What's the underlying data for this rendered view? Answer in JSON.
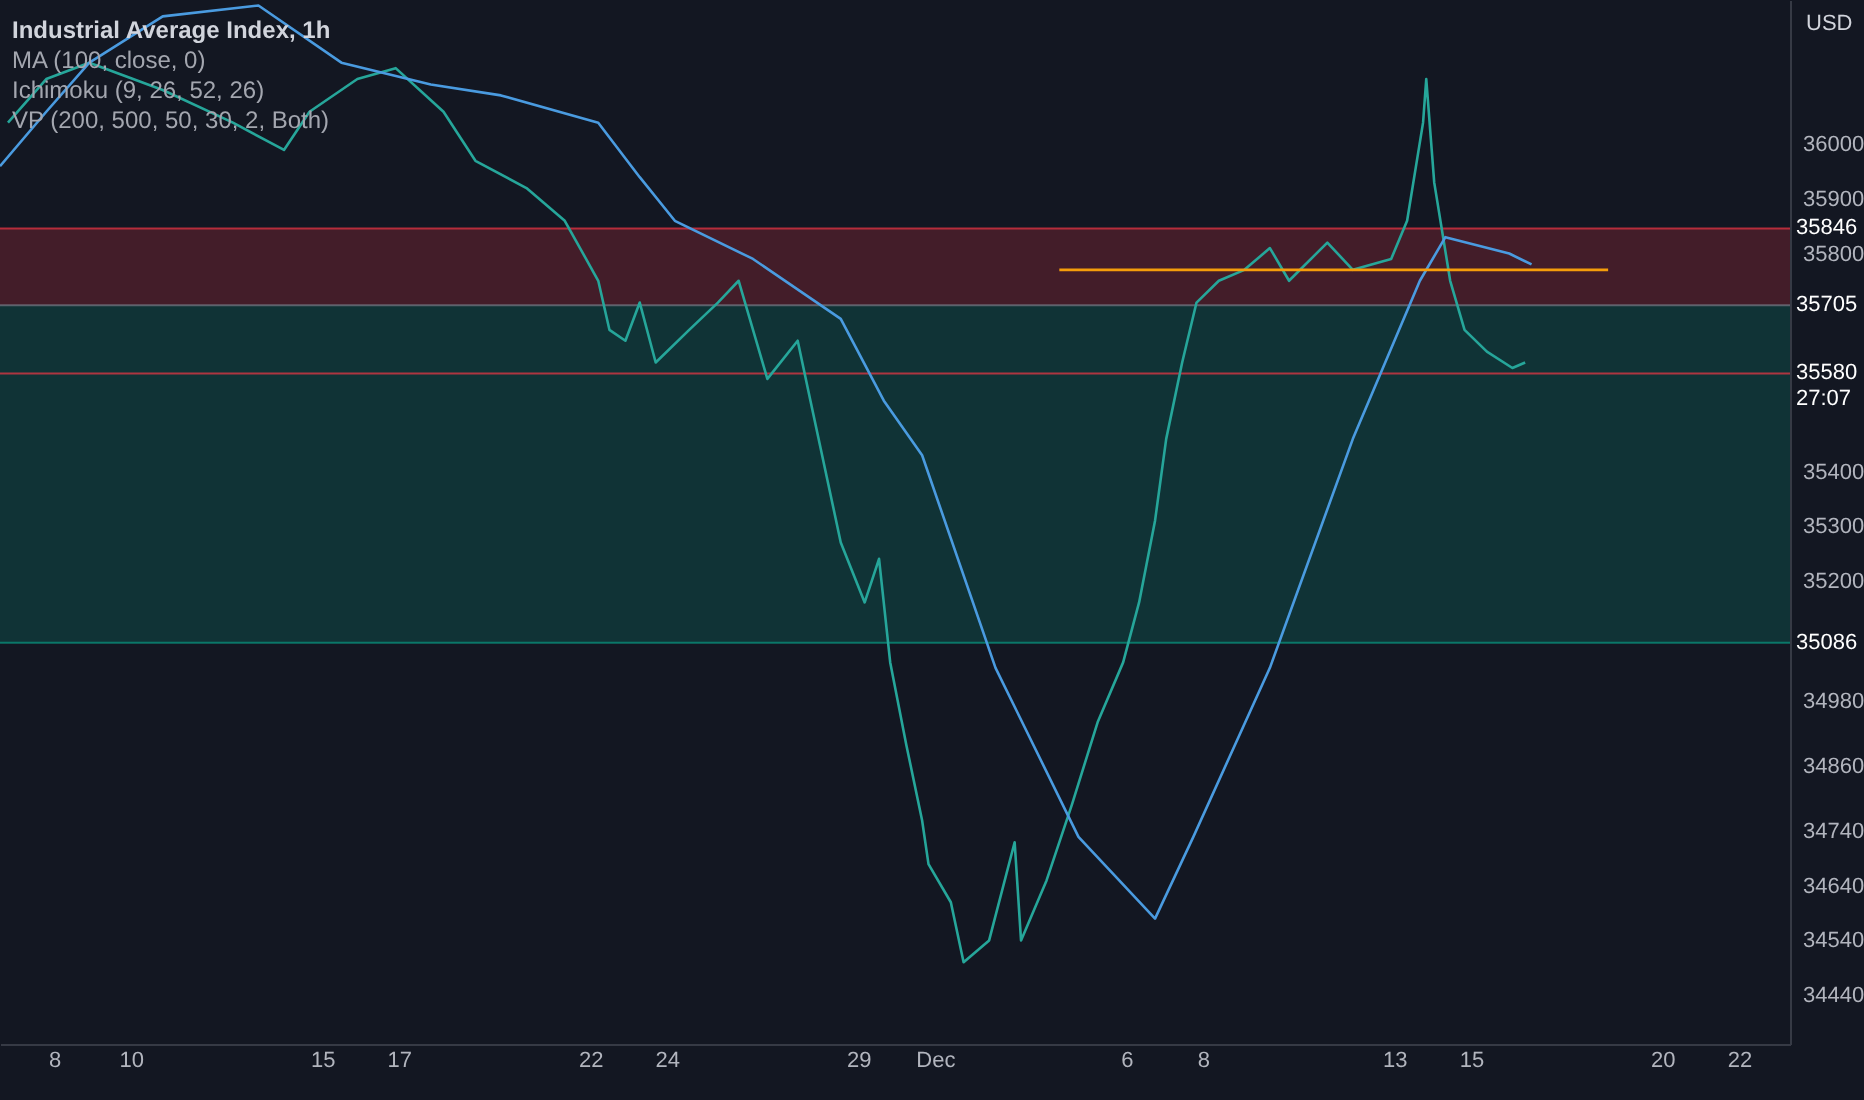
{
  "chart_data": {
    "type": "line",
    "title": "Industrial Average Index, 1h",
    "annotations": [
      "MA (100, close, 0)",
      "Ichimoku (9, 26, 52, 26)",
      "VP (200, 500, 50, 30, 2, Both)",
      "27:07",
      "USD"
    ],
    "xlim": [
      "--11-06T14:00",
      "--12-23T08:00"
    ],
    "xticks": [
      {
        "value": "--11-08",
        "label": "8"
      },
      {
        "value": "--11-10",
        "label": "10"
      },
      {
        "value": "--11-15",
        "label": "15"
      },
      {
        "value": "--11-17",
        "label": "17"
      },
      {
        "value": "--11-22",
        "label": "22"
      },
      {
        "value": "--11-24",
        "label": "24"
      },
      {
        "value": "--11-29",
        "label": "29"
      },
      {
        "value": "--12-01",
        "label": "Dec"
      },
      {
        "value": "--12-06",
        "label": "6"
      },
      {
        "value": "--12-08",
        "label": "8"
      },
      {
        "value": "--12-13",
        "label": "13"
      },
      {
        "value": "--12-15",
        "label": "15"
      },
      {
        "value": "--12-20",
        "label": "20"
      },
      {
        "value": "--12-22",
        "label": "22"
      }
    ],
    "ylim": [
      34350,
      36265
    ],
    "yticks": [
      36000,
      35900,
      35800,
      35400,
      35300,
      35200,
      34980,
      34860,
      34740,
      34640,
      34540,
      34440
    ],
    "grid": false,
    "series": [
      {
        "color": "#26a69a",
        "x": [
          "--11-06T19:00",
          "--11-07T19:00",
          "--11-08T22:00",
          "--11-10T20:00",
          "--11-12T16:00",
          "--11-14T00:00",
          "--11-14T16:00",
          "--11-15T22:00",
          "--11-16T22:00",
          "--11-18T04:00",
          "--11-19T00:00",
          "--11-20T08:00",
          "--11-21T08:00",
          "--11-22T05:00",
          "--11-22T12:00",
          "--11-22T22:00",
          "--11-23T07:00",
          "--11-23T17:00",
          "--11-24T14:00",
          "--11-25T08:00",
          "--11-25T21:00",
          "--11-26T15:00",
          "--11-27T10:00",
          "--11-27T18:00",
          "--11-28T13:00",
          "--11-29T04:00",
          "--11-29T13:00",
          "--11-29T20:00",
          "--11-30T06:00",
          "--11-30T16:00",
          "--11-30T20:00",
          "--12-01T10:00",
          "--12-01T18:00",
          "--12-02T10:00",
          "--12-03T02:00",
          "--12-03T06:00",
          "--12-03T22:00",
          "--12-04T14:00",
          "--12-05T06:00",
          "--12-05T22:00",
          "--12-06T08:00",
          "--12-06T18:00",
          "--12-07T01:00",
          "--12-07T11:00",
          "--12-07T20:00",
          "--12-08T10:00",
          "--12-09T02:00",
          "--12-09T18:00",
          "--12-10T06:00",
          "--12-11T06:00",
          "--12-11T22:00",
          "--12-12T22:00",
          "--12-13T08:00",
          "--12-13T18:00",
          "--12-13T20:00",
          "--12-14T01:00",
          "--12-14T11:00",
          "--12-14T20:00",
          "--12-15T10:00",
          "--12-16T02:00",
          "--12-16T10:00"
        ],
        "values": [
          36040,
          36120,
          36150,
          36100,
          36040,
          35990,
          36060,
          36120,
          36140,
          36060,
          35970,
          35920,
          35860,
          35750,
          35660,
          35640,
          35710,
          35600,
          35660,
          35710,
          35750,
          35570,
          35640,
          35530,
          35270,
          35160,
          35240,
          35050,
          34900,
          34760,
          34680,
          34610,
          34500,
          34540,
          34720,
          34540,
          34650,
          34790,
          34940,
          35050,
          35160,
          35310,
          35460,
          35600,
          35710,
          35750,
          35770,
          35810,
          35750,
          35820,
          35770,
          35790,
          35860,
          36040,
          36120,
          35930,
          35750,
          35660,
          35620,
          35590,
          35600
        ]
      },
      {
        "color": "#4a9be0",
        "x": [
          "--11-06T14:00",
          "--11-07T19:00",
          "--11-08T22:00",
          "--11-10T20:00",
          "--11-13T08:00",
          "--11-15T12:00",
          "--11-17T20:00",
          "--11-19T16:00",
          "--11-22T05:00",
          "--11-23T07:00",
          "--11-24T05:00",
          "--11-26T06:00",
          "--11-28T13:00",
          "--11-29T16:00",
          "--11-30T16:00",
          "--12-02T14:00",
          "--12-04T18:00",
          "--12-06T18:00",
          "--12-07T18:00",
          "--12-09T18:00",
          "--12-11T22:00",
          "--12-13T16:00",
          "--12-14T08:00",
          "--12-16T00:00",
          "--12-16T14:00"
        ],
        "values": [
          35960,
          36060,
          36150,
          36235,
          36255,
          36150,
          36110,
          36090,
          36040,
          35940,
          35860,
          35790,
          35680,
          35530,
          35430,
          35040,
          34730,
          34580,
          34730,
          35040,
          35460,
          35750,
          35830,
          35800,
          35780
        ]
      },
      {
        "color": "#f59d0b",
        "x": [
          "--12-04T06:00",
          "--12-18T14:00"
        ],
        "values": [
          35770,
          35770
        ]
      }
    ],
    "bands": [
      {
        "axis": "y",
        "from": 35705,
        "to": 35846,
        "color": "#f23645"
      },
      {
        "axis": "y",
        "from": 35086,
        "to": 35705,
        "color": "#089981"
      }
    ],
    "ref_lines": [
      {
        "axis": "y",
        "value": 35846,
        "label": "35846",
        "color": "#f23645"
      },
      {
        "axis": "y",
        "value": 35705,
        "label": "35705",
        "color": "#787b86"
      },
      {
        "axis": "y",
        "value": 35580,
        "label": "35580",
        "color": "#f23645"
      },
      {
        "axis": "y",
        "value": 35086,
        "label": "35086",
        "color": "#089981"
      }
    ]
  }
}
